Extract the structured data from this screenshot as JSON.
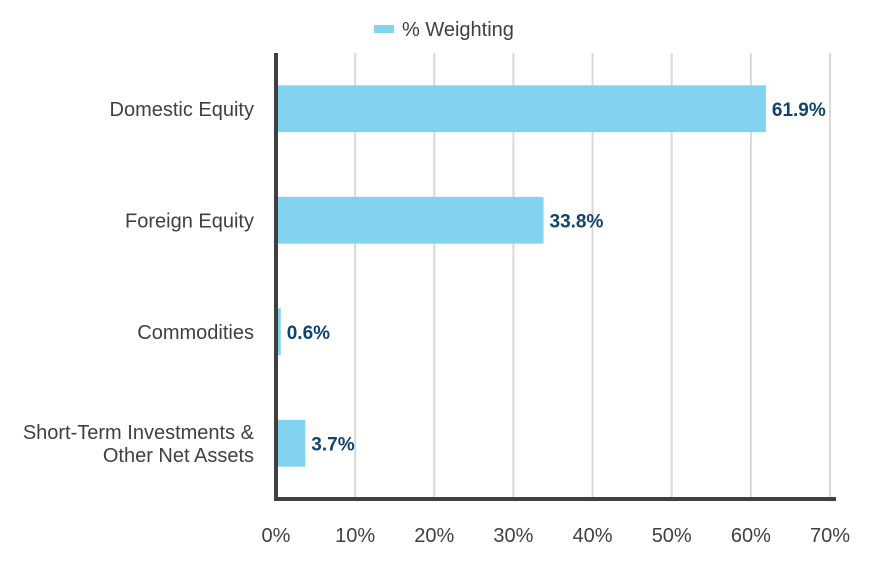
{
  "chart_data": {
    "type": "bar",
    "orientation": "horizontal",
    "categories": [
      [
        "Domestic Equity"
      ],
      [
        "Foreign Equity"
      ],
      [
        "Commodities"
      ],
      [
        "Short-Term Investments &",
        "Other Net Assets"
      ]
    ],
    "series": [
      {
        "name": "% Weighting",
        "values": [
          61.9,
          33.8,
          0.6,
          3.7
        ],
        "data_labels": [
          "61.9%",
          "33.8%",
          "0.6%",
          "3.7%"
        ],
        "color": "#82d3f0"
      }
    ],
    "xlim": [
      0,
      70
    ],
    "xticks": [
      0,
      10,
      20,
      30,
      40,
      50,
      60,
      70
    ],
    "xtick_labels": [
      "0%",
      "10%",
      "20%",
      "30%",
      "40%",
      "50%",
      "60%",
      "70%"
    ],
    "grid": "vertical",
    "legend_position": "top-center",
    "colors": {
      "bar": "#82d3f0",
      "data_label": "#0f4470",
      "axis": "#404040",
      "grid": "#d9d9d9",
      "text": "#404040"
    }
  }
}
